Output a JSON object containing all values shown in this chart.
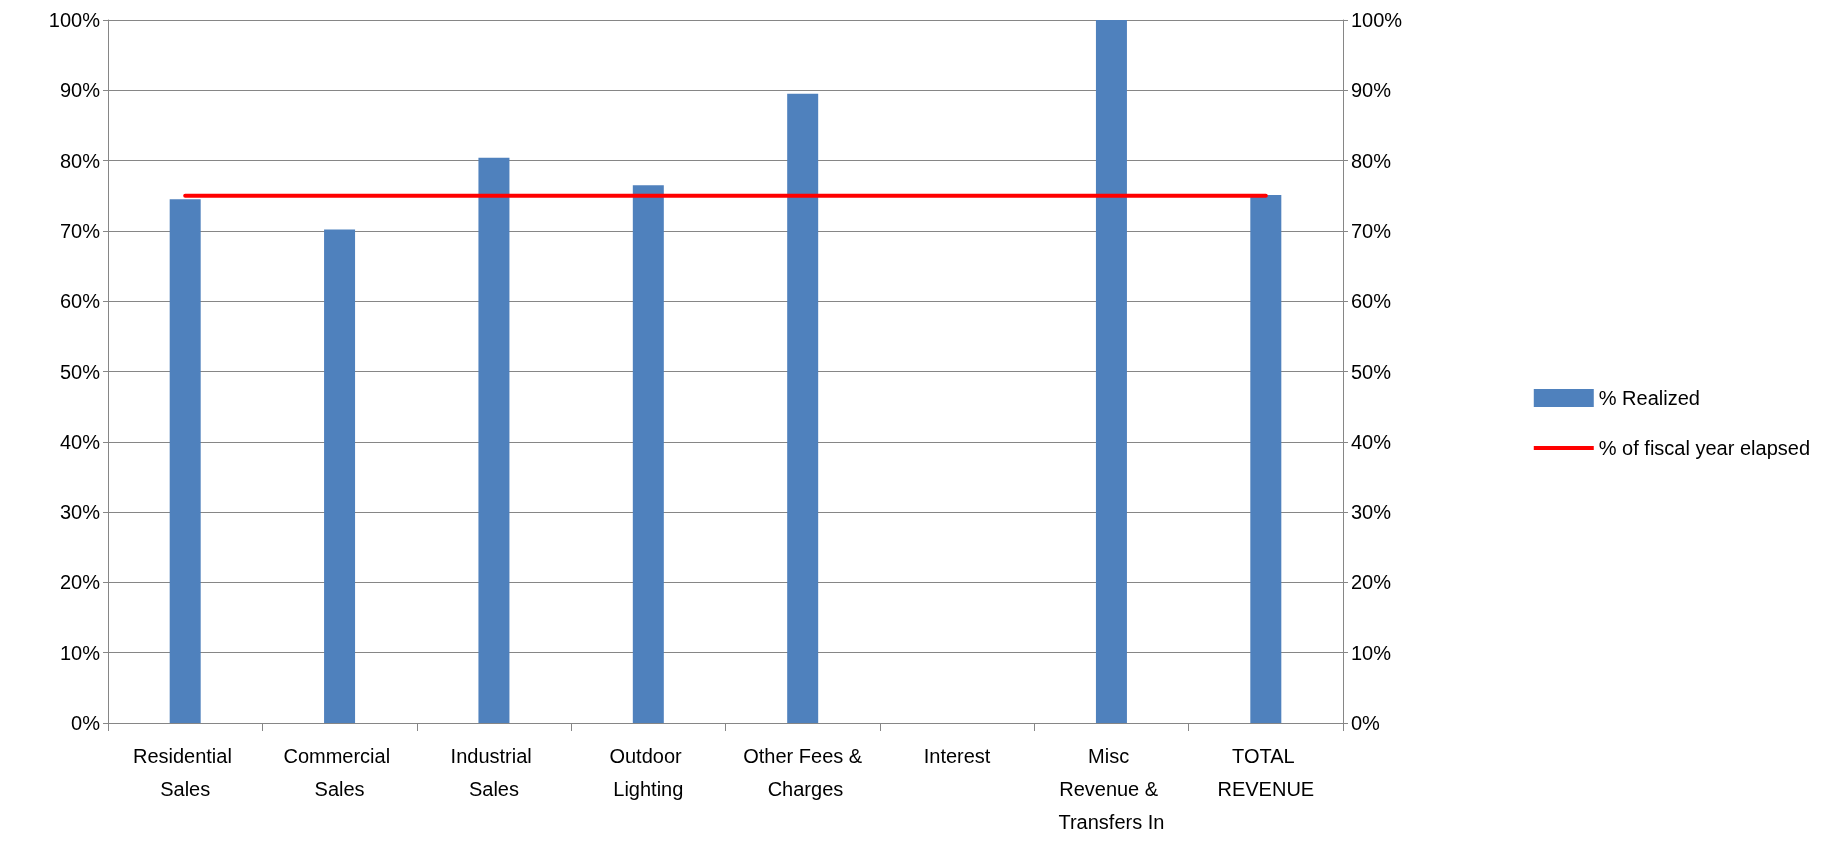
{
  "chart_data": {
    "type": "bar",
    "categories": [
      "Residential Sales",
      "Commercial Sales",
      "Industrial Sales",
      "Outdoor Lighting",
      "Other Fees & Charges",
      "Interest",
      "Misc Revenue & Transfers In",
      "TOTAL REVENUE"
    ],
    "series": [
      {
        "name": "% Realized",
        "color": "#4f81bd",
        "values": [
          74.5,
          70.2,
          80.4,
          76.5,
          89.5,
          0,
          100,
          75.1
        ]
      },
      {
        "name": "% of fiscal year elapsed",
        "type": "line",
        "color": "#ff0000",
        "marker": "none",
        "line_style": "solid",
        "values": [
          75,
          75,
          75,
          75,
          75,
          75,
          75,
          75
        ]
      }
    ],
    "ylim": [
      0,
      100
    ],
    "yticks": [
      {
        "value": 0,
        "label": "0%"
      },
      {
        "value": 10,
        "label": "10%"
      },
      {
        "value": 20,
        "label": "20%"
      },
      {
        "value": 30,
        "label": "30%"
      },
      {
        "value": 40,
        "label": "40%"
      },
      {
        "value": 50,
        "label": "50%"
      },
      {
        "value": 60,
        "label": "60%"
      },
      {
        "value": 70,
        "label": "70%"
      },
      {
        "value": 80,
        "label": "80%"
      },
      {
        "value": 90,
        "label": "90%"
      },
      {
        "value": 100,
        "label": "100%"
      }
    ],
    "y2lim": [
      0,
      100
    ],
    "y2ticks": [
      {
        "value": 0,
        "label": "0%"
      },
      {
        "value": 10,
        "label": "10%"
      },
      {
        "value": 20,
        "label": "20%"
      },
      {
        "value": 30,
        "label": "30%"
      },
      {
        "value": 40,
        "label": "40%"
      },
      {
        "value": 50,
        "label": "50%"
      },
      {
        "value": 60,
        "label": "60%"
      },
      {
        "value": 70,
        "label": "70%"
      },
      {
        "value": 80,
        "label": "80%"
      },
      {
        "value": 90,
        "label": "90%"
      },
      {
        "value": 100,
        "label": "100%"
      }
    ],
    "grid": "y",
    "legend": "right"
  }
}
